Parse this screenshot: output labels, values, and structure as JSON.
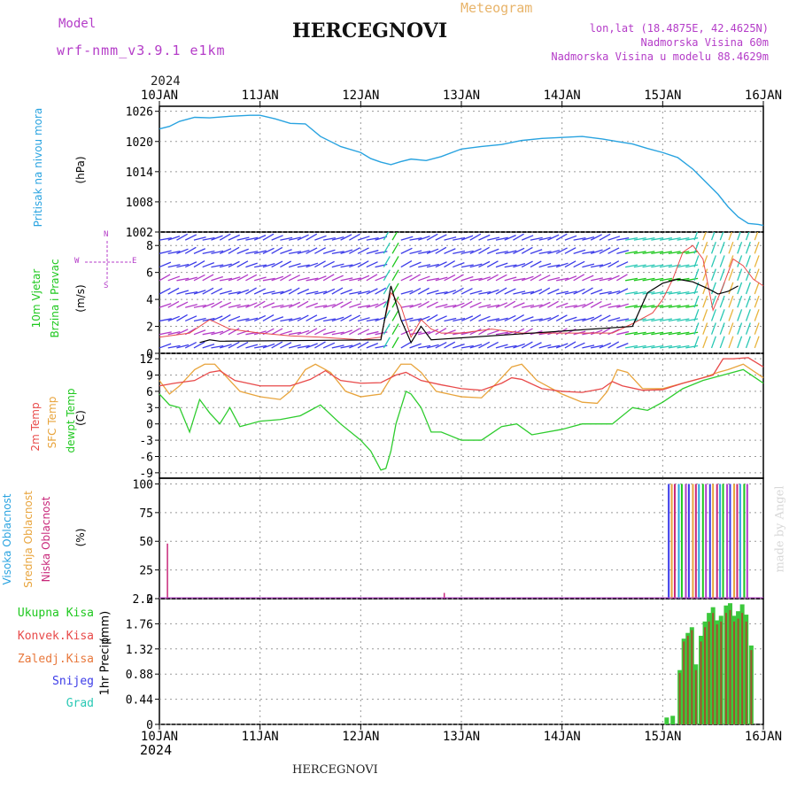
{
  "header": {
    "model_label": "Model",
    "model_name": "wrf-nmm_v3.9.1 e1km",
    "station": "HERCEGNOVI",
    "meteogram_label": "Meteogram",
    "lonlat": "lon,lat (18.4875E, 42.4625N)",
    "altitude": "Nadmorska Visina 60m",
    "altitude_model": "Nadmorska Visina u modelu 88.4629m",
    "year_top": "2024",
    "year_bottom": "2024",
    "footer_station": "HERCEGNOVI",
    "credit": "made by Angel"
  },
  "colors": {
    "pressure": "#29a3e0",
    "wind_green": "#1ec81e",
    "wind_purple": "#b43cc8",
    "temp2m": "#e84a4a",
    "sfc": "#e8a43c",
    "dew": "#2ecc2e",
    "high_cloud": "#29a3e0",
    "mid_cloud": "#e8a43c",
    "low_cloud": "#c8287a",
    "total_precip": "#3cc83c",
    "conv_precip": "#e84a4a",
    "frz_precip": "#e8783c",
    "snow": "#3c3ce8",
    "graupel": "#28c8b4"
  },
  "legend_wind": {
    "n": "N",
    "w": "W",
    "e": "E",
    "s": "S"
  },
  "chart_data": [
    {
      "type": "line",
      "title": "",
      "ylabel": "Pritisak na nivou mora",
      "unit": "(hPa)",
      "x_tick_labels": [
        "10JAN",
        "11JAN",
        "12JAN",
        "13JAN",
        "14JAN",
        "15JAN",
        "16JAN"
      ],
      "ylim": [
        1002,
        1027
      ],
      "yticks": [
        1002,
        1008,
        1014,
        1020,
        1026
      ],
      "grid": true,
      "series": [
        {
          "name": "Pritisak na nivou mora",
          "x": [
            0,
            0.1,
            0.2,
            0.35,
            0.5,
            0.7,
            0.9,
            1.0,
            1.15,
            1.3,
            1.45,
            1.6,
            1.8,
            2.0,
            2.1,
            2.2,
            2.3,
            2.4,
            2.5,
            2.65,
            2.8,
            3.0,
            3.2,
            3.4,
            3.6,
            3.8,
            4.0,
            4.2,
            4.4,
            4.55,
            4.7,
            4.85,
            5.0,
            5.15,
            5.3,
            5.45,
            5.55,
            5.65,
            5.75,
            5.85,
            5.95,
            6.0
          ],
          "values": [
            1022.5,
            1023,
            1024,
            1024.8,
            1024.7,
            1025,
            1025.2,
            1025.2,
            1024.5,
            1023.6,
            1023.5,
            1021,
            1019,
            1017.8,
            1016.6,
            1015.9,
            1015.4,
            1016,
            1016.5,
            1016.2,
            1017,
            1018.5,
            1019,
            1019.4,
            1020.2,
            1020.6,
            1020.8,
            1021,
            1020.5,
            1020,
            1019.5,
            1018.6,
            1017.8,
            1016.8,
            1014.5,
            1011.5,
            1009.5,
            1007,
            1005,
            1003.7,
            1003.5,
            1003.3
          ]
        }
      ]
    },
    {
      "type": "line",
      "title": "",
      "ylabel": "10m Vjetar Brzina i Pravac",
      "unit": "(m/s)",
      "ylim": [
        0,
        9
      ],
      "yticks": [
        0,
        2,
        4,
        6,
        8
      ],
      "grid": true,
      "series": [
        {
          "name": "gust",
          "x": [
            0,
            0.3,
            0.5,
            0.7,
            1.0,
            1.3,
            1.6,
            2.0,
            2.2,
            2.3,
            2.4,
            2.5,
            2.6,
            2.7,
            2.8,
            3.0,
            3.3,
            3.6,
            3.9,
            4.2,
            4.5,
            4.7,
            4.9,
            5.0,
            5.1,
            5.2,
            5.3,
            5.4,
            5.5,
            5.6,
            5.7,
            5.8,
            5.9,
            6.0
          ],
          "values": [
            1.2,
            1.5,
            2.5,
            1.8,
            1.5,
            1.3,
            1.2,
            1.0,
            1.2,
            4.5,
            3.5,
            1.2,
            2.5,
            1.8,
            1.5,
            1.5,
            1.8,
            1.5,
            1.5,
            1.5,
            1.5,
            2.2,
            3.0,
            4.0,
            5.5,
            7.5,
            8.0,
            7.0,
            3.2,
            5.0,
            7.0,
            6.5,
            5.5,
            5.0
          ]
        },
        {
          "name": "speed",
          "x": [
            0.4,
            0.5,
            0.6,
            2.2,
            2.3,
            2.4,
            2.5,
            2.6,
            2.7,
            4.7,
            4.85,
            5.0,
            5.15,
            5.3,
            5.45,
            5.55,
            5.65,
            5.75
          ],
          "values": [
            0.8,
            1.0,
            0.9,
            1.0,
            5.0,
            2.5,
            0.8,
            2.0,
            1.0,
            2.0,
            4.5,
            5.2,
            5.5,
            5.3,
            4.8,
            4.4,
            4.6,
            5.0
          ]
        }
      ]
    },
    {
      "type": "line",
      "title": "",
      "ylabel": "2m Temp / SFC Temp / dewpt Temp",
      "unit": "(C)",
      "ylim": [
        -10,
        13
      ],
      "yticks": [
        -9,
        -6,
        -3,
        0,
        3,
        6,
        9,
        12
      ],
      "grid": true,
      "series": [
        {
          "name": "2m Temp",
          "x": [
            0,
            0.15,
            0.35,
            0.5,
            0.6,
            0.75,
            1.0,
            1.3,
            1.5,
            1.65,
            1.8,
            2.0,
            2.2,
            2.35,
            2.45,
            2.6,
            2.8,
            3.0,
            3.2,
            3.4,
            3.5,
            3.6,
            3.8,
            4.0,
            4.2,
            4.4,
            4.5,
            4.6,
            4.8,
            5.0,
            5.2,
            5.4,
            5.5,
            5.6,
            5.7,
            5.85,
            6.0
          ],
          "values": [
            7,
            7.5,
            8,
            9.5,
            9.8,
            8,
            7,
            7,
            8.2,
            9.8,
            8,
            7.5,
            7.6,
            9.0,
            9.5,
            8,
            7.2,
            6.5,
            6.2,
            7.5,
            8.5,
            8.2,
            6.5,
            6,
            5.8,
            6.5,
            7.8,
            7.0,
            6.2,
            6.3,
            7.5,
            8.5,
            9.0,
            12,
            12,
            12.2,
            10.5
          ]
        },
        {
          "name": "SFC Temp",
          "x": [
            0,
            0.1,
            0.2,
            0.35,
            0.45,
            0.55,
            0.65,
            0.8,
            1.0,
            1.2,
            1.3,
            1.45,
            1.55,
            1.7,
            1.85,
            2.0,
            2.2,
            2.3,
            2.4,
            2.5,
            2.6,
            2.75,
            3.0,
            3.2,
            3.35,
            3.5,
            3.6,
            3.75,
            4.0,
            4.2,
            4.35,
            4.45,
            4.55,
            4.65,
            4.8,
            5.0,
            5.2,
            5.4,
            5.55,
            5.65,
            5.8,
            6.0
          ],
          "values": [
            8,
            5.5,
            7,
            10,
            11,
            11,
            9,
            6,
            5,
            4.5,
            6,
            10,
            11,
            9.5,
            6,
            5,
            5.5,
            8.5,
            11,
            11,
            9.5,
            6,
            5,
            4.8,
            7.5,
            10.5,
            11,
            8,
            5.5,
            4,
            3.8,
            6,
            10,
            9.5,
            6.5,
            6.5,
            7.5,
            8.5,
            9.5,
            10,
            11,
            8.5
          ]
        },
        {
          "name": "dewpt Temp",
          "x": [
            0,
            0.1,
            0.2,
            0.3,
            0.4,
            0.5,
            0.6,
            0.7,
            0.8,
            1.0,
            1.2,
            1.4,
            1.5,
            1.6,
            1.8,
            2.0,
            2.1,
            2.2,
            2.25,
            2.3,
            2.35,
            2.4,
            2.45,
            2.5,
            2.6,
            2.7,
            2.8,
            3.0,
            3.2,
            3.4,
            3.55,
            3.7,
            4.0,
            4.2,
            4.5,
            4.7,
            4.85,
            5.0,
            5.2,
            5.4,
            5.6,
            5.8,
            6.0
          ],
          "values": [
            5.5,
            3.5,
            3,
            -1.5,
            4.5,
            2,
            0,
            3,
            -0.5,
            0.5,
            0.8,
            1.5,
            2.5,
            3.5,
            0,
            -3,
            -5,
            -8.5,
            -8.2,
            -5,
            0,
            3,
            6,
            5.5,
            3,
            -1.5,
            -1.5,
            -3,
            -3,
            -0.5,
            0,
            -2,
            -1,
            0,
            0,
            3,
            2.5,
            4,
            6.5,
            8,
            9,
            10,
            7.5
          ]
        }
      ]
    },
    {
      "type": "bar",
      "title": "",
      "ylabel": "Visoka Oblacnost / Srednja Oblacnost / Niska Oblacnost",
      "unit": "(%)",
      "ylim": [
        0,
        105
      ],
      "yticks": [
        0,
        25,
        50,
        75,
        100
      ],
      "grid": true,
      "series": [
        {
          "name": "Niska Oblacnost",
          "x": [
            0.08,
            2.83
          ],
          "values": [
            48,
            5
          ]
        },
        {
          "name": "Visoka Oblacnost",
          "x": [
            5.06,
            5.09,
            5.12,
            5.16,
            5.19,
            5.23,
            5.26,
            5.3,
            5.33,
            5.36,
            5.4,
            5.43,
            5.47,
            5.5,
            5.54,
            5.57,
            5.6,
            5.64,
            5.67,
            5.71,
            5.74,
            5.77,
            5.81,
            5.84
          ],
          "values": [
            100,
            100,
            100,
            100,
            100,
            100,
            100,
            100,
            100,
            100,
            100,
            100,
            100,
            100,
            100,
            100,
            100,
            100,
            100,
            100,
            100,
            100,
            100,
            100
          ]
        }
      ]
    },
    {
      "type": "bar",
      "title": "",
      "ylabel": "1hr Precip",
      "unit": "(mm)",
      "x_tick_labels": [
        "10JAN",
        "11JAN",
        "12JAN",
        "13JAN",
        "14JAN",
        "15JAN",
        "16JAN"
      ],
      "ylim": [
        0,
        2.2
      ],
      "yticks": [
        0,
        0.44,
        0.88,
        1.32,
        1.76,
        2.2
      ],
      "grid": true,
      "series": [
        {
          "name": "Ukupna Kisa",
          "x": [
            5.04,
            5.1,
            5.17,
            5.21,
            5.25,
            5.29,
            5.33,
            5.38,
            5.42,
            5.46,
            5.5,
            5.54,
            5.58,
            5.63,
            5.67,
            5.71,
            5.75,
            5.79,
            5.83,
            5.88
          ],
          "values": [
            0.12,
            0.15,
            0.95,
            1.5,
            1.6,
            1.7,
            1.05,
            1.55,
            1.8,
            1.95,
            2.05,
            1.82,
            1.9,
            2.08,
            2.12,
            1.9,
            1.98,
            2.1,
            1.92,
            1.38
          ]
        },
        {
          "name": "Konvek.Kisa",
          "x": [
            5.17,
            5.21,
            5.25,
            5.29,
            5.33,
            5.38,
            5.42,
            5.46,
            5.5,
            5.54,
            5.58,
            5.63,
            5.67,
            5.71,
            5.75,
            5.79,
            5.83,
            5.88
          ],
          "values": [
            0.9,
            1.45,
            1.55,
            1.65,
            0.95,
            1.45,
            1.7,
            1.8,
            1.95,
            1.75,
            1.8,
            1.95,
            2.0,
            1.8,
            1.85,
            1.95,
            1.8,
            1.3
          ]
        }
      ]
    }
  ],
  "panel_labels": {
    "p1": {
      "name": "Pritisak na nivou mora",
      "unit": "(hPa)"
    },
    "p2": {
      "line1": "10m Vjetar",
      "line2": "Brzina i Pravac",
      "unit": "(m/s)"
    },
    "p3": {
      "line1": "2m Temp",
      "line2": "SFC Temp",
      "line3": "dewpt Temp",
      "unit": "(C)"
    },
    "p4": {
      "line1": "Visoka Oblacnost",
      "line2": "Srednja Oblacnost",
      "line3": "Niska Oblacnost",
      "unit": "(%)"
    },
    "p5": {
      "total": "Ukupna Kisa",
      "conv": "Konvek.Kisa",
      "frz": "Zaledj.Kisa",
      "snow": "Snijeg",
      "graupel": "Grad",
      "axis": "1hr Precip",
      "unit": "(mm)"
    }
  }
}
